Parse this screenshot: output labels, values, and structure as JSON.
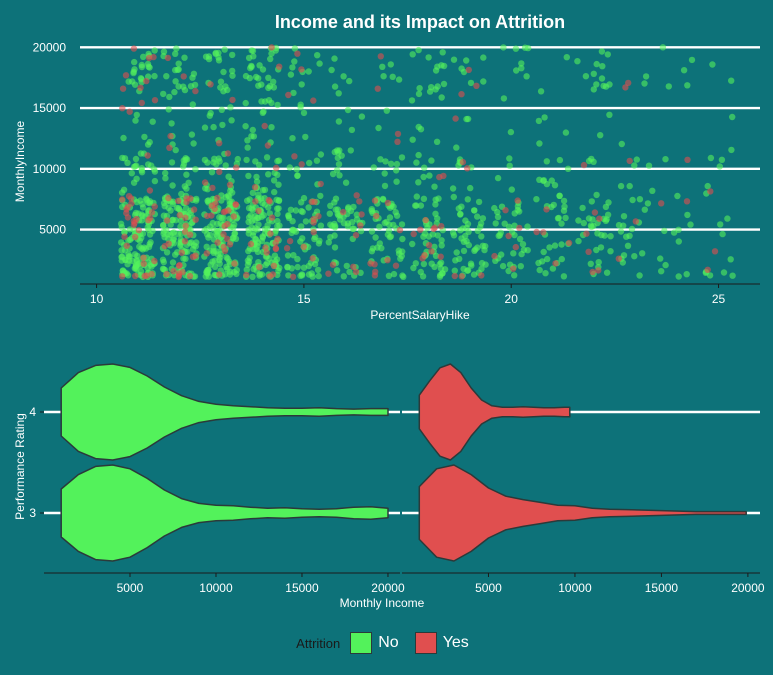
{
  "chart_data": [
    {
      "type": "scatter",
      "title": "Income and its Impact on Attrition",
      "xlabel": "PercentSalaryHike",
      "ylabel": "MonthlyIncome",
      "xlim": [
        9.6,
        26.0
      ],
      "ylim": [
        600,
        20600
      ],
      "xticks": [
        10,
        15,
        20,
        25
      ],
      "yticks": [
        5000,
        10000,
        15000,
        20000
      ],
      "grid": "horizontal",
      "series": [
        {
          "name": "No",
          "color": "#53f25b"
        },
        {
          "name": "Yes",
          "color": "#e04f4f"
        }
      ],
      "points": {
        "hike_levels": [
          11,
          12,
          13,
          14,
          15,
          16,
          17,
          18,
          19,
          20,
          21,
          22,
          23,
          24,
          25
        ],
        "No_counts": [
          171,
          165,
          167,
          177,
          82,
          68,
          67,
          76,
          67,
          48,
          43,
          49,
          28,
          18,
          18
        ],
        "Yes_counts": [
          41,
          33,
          32,
          24,
          18,
          10,
          14,
          13,
          9,
          7,
          5,
          7,
          5,
          3,
          3
        ]
      }
    },
    {
      "type": "violin",
      "xlabel": "Monthly Income",
      "ylabel": "Performance Rating",
      "xlim": [
        0,
        20700
      ],
      "xticks": [
        5000,
        10000,
        15000,
        20000
      ],
      "categories": [
        "3",
        "4"
      ],
      "facets": [
        "No",
        "Yes"
      ],
      "grid": "horizontal",
      "density": {
        "No": {
          "3": {
            "range": [
              1000,
              20000
            ],
            "x": [
              1000,
              2000,
              3000,
              4000,
              5000,
              6000,
              7000,
              8000,
              9000,
              10000,
              11000,
              12000,
              13000,
              14000,
              15000,
              16000,
              17000,
              18000,
              19000,
              20000
            ],
            "d": [
              0.5,
              0.8,
              0.97,
              1.0,
              0.92,
              0.72,
              0.48,
              0.3,
              0.2,
              0.16,
              0.15,
              0.12,
              0.1,
              0.11,
              0.09,
              0.08,
              0.09,
              0.12,
              0.13,
              0.1
            ]
          },
          "4": {
            "range": [
              1000,
              20000
            ],
            "x": [
              1000,
              2000,
              3000,
              4000,
              5000,
              6000,
              7000,
              8000,
              9000,
              10000,
              11000,
              12000,
              13000,
              14000,
              15000,
              16000,
              17000,
              18000,
              19000,
              20000
            ],
            "d": [
              0.5,
              0.82,
              0.97,
              1.0,
              0.93,
              0.75,
              0.52,
              0.34,
              0.22,
              0.16,
              0.13,
              0.11,
              0.09,
              0.08,
              0.08,
              0.09,
              0.07,
              0.06,
              0.07,
              0.07
            ]
          }
        },
        "Yes": {
          "3": {
            "range": [
              1000,
              19900
            ],
            "x": [
              1000,
              2000,
              3000,
              4000,
              5000,
              6000,
              7000,
              8000,
              9000,
              10000,
              11000,
              12000,
              13000,
              14000,
              15000,
              16000,
              17000,
              18000,
              19000,
              19900
            ],
            "d": [
              0.55,
              0.92,
              1.0,
              0.8,
              0.52,
              0.35,
              0.28,
              0.22,
              0.16,
              0.15,
              0.1,
              0.08,
              0.07,
              0.06,
              0.05,
              0.04,
              0.03,
              0.03,
              0.03,
              0.03
            ]
          },
          "4": {
            "range": [
              1000,
              9700
            ],
            "x": [
              1000,
              1600,
              2200,
              2800,
              3400,
              4000,
              4600,
              5200,
              5800,
              6400,
              7000,
              7600,
              8200,
              8800,
              9400,
              9700
            ],
            "d": [
              0.35,
              0.65,
              0.92,
              1.0,
              0.82,
              0.5,
              0.25,
              0.13,
              0.1,
              0.1,
              0.11,
              0.1,
              0.09,
              0.09,
              0.1,
              0.1
            ]
          }
        }
      }
    }
  ],
  "legend": {
    "title": "Attrition",
    "items": [
      {
        "label": "No",
        "color": "#53f25b"
      },
      {
        "label": "Yes",
        "color": "#e04f4f"
      }
    ]
  }
}
